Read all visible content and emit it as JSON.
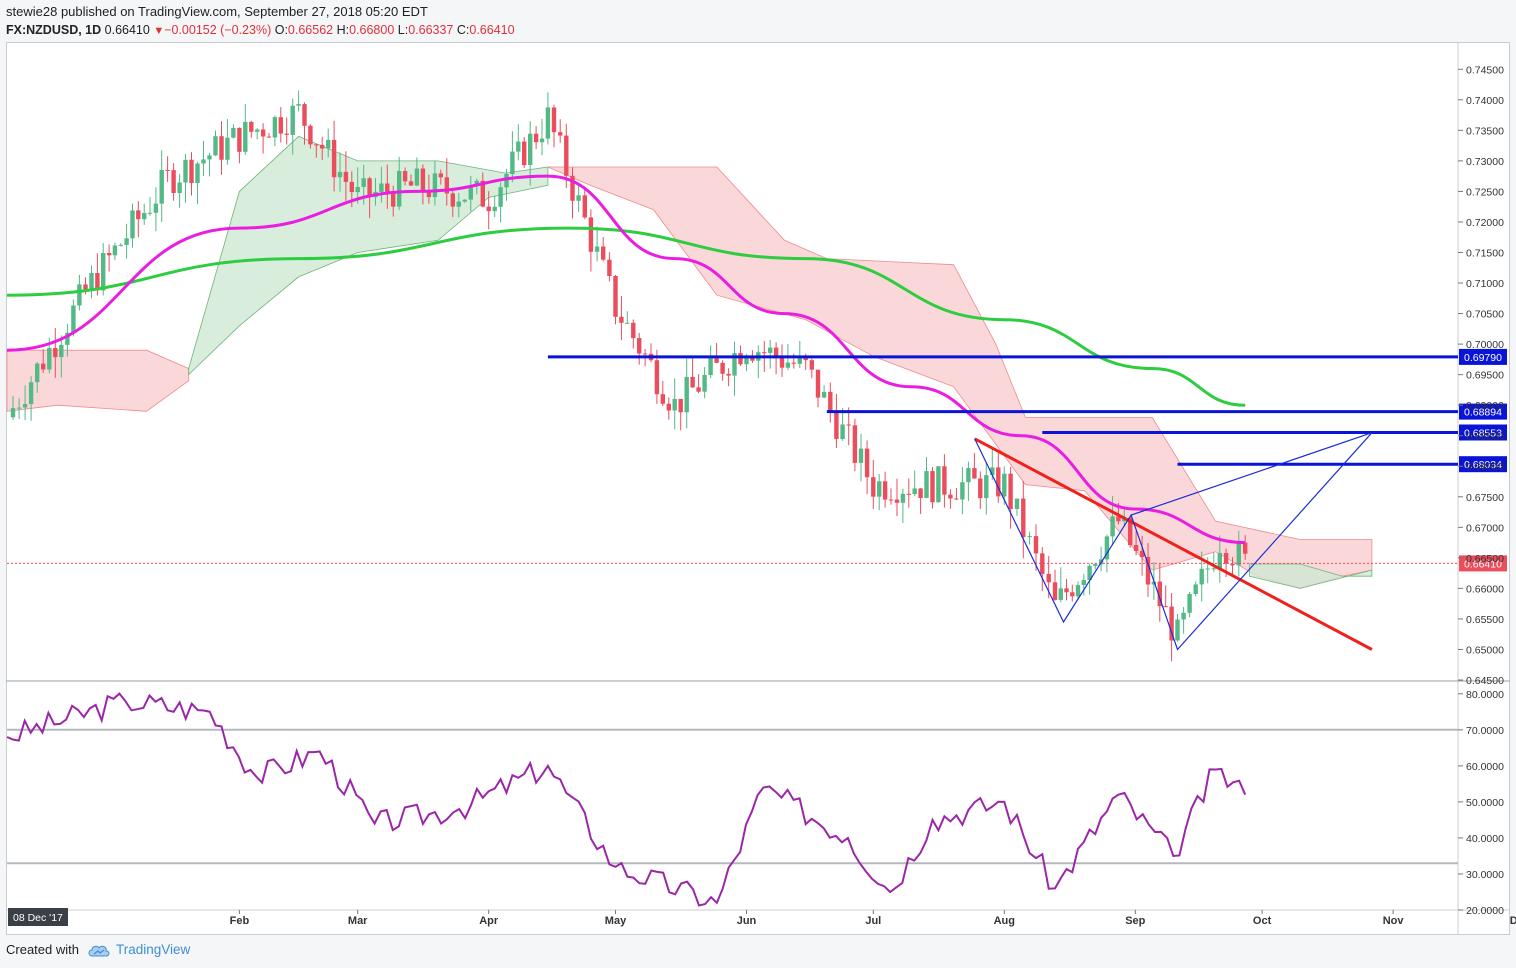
{
  "header": {
    "publisher": "stewie28",
    "published_text": "published on TradingView.com, September 27, 2018 05:20 EDT",
    "symbol": "FX:NZDUSD, 1D",
    "last": "0.66410",
    "change": "−0.00152 (−0.23%)",
    "o_label": "O:",
    "o": "0.66562",
    "h_label": "H:",
    "h": "0.66800",
    "l_label": "L:",
    "l": "0.66337",
    "c_label": "C:",
    "c": "0.66410"
  },
  "footer": {
    "created_with": "Created with",
    "brand": "TradingView"
  },
  "colors": {
    "up": "#53b987",
    "down": "#eb4d5c",
    "ema50": "#e91ee0",
    "ema200": "#2ecc40",
    "level": "#0a14d6",
    "trendline": "#f0201c",
    "pattern": "#1a2ed6",
    "rsi": "#9b27a8",
    "cloud_bull": "#cfe9d3",
    "cloud_bear": "#f8c9cc"
  },
  "chart_data": [
    {
      "type": "candlestick",
      "instrument": "FX:NZDUSD",
      "timeframe": "1D",
      "y_range": [
        0.645,
        0.7475
      ],
      "price_ticks": [
        "0.74500",
        "0.74000",
        "0.73500",
        "0.73000",
        "0.72500",
        "0.72000",
        "0.71500",
        "0.71000",
        "0.70500",
        "0.70000",
        "0.69500",
        "0.69000",
        "0.68500",
        "0.68000",
        "0.67500",
        "0.67000",
        "0.66500",
        "0.66000",
        "0.65500",
        "0.65000",
        "0.64500"
      ],
      "x_ticks": [
        "Feb",
        "Mar",
        "Apr",
        "May",
        "Jun",
        "Jul",
        "Aug",
        "Sep",
        "Oct",
        "Nov",
        "Dec"
      ],
      "x_start_label": "08 Dec '17",
      "current_price": "0.66410",
      "horizontal_levels": [
        "0.69790",
        "0.68894",
        "0.68553",
        "0.68034"
      ],
      "monthly_path": [
        {
          "date": "2017-12-08",
          "close": 0.688
        },
        {
          "date": "2017-12-28",
          "close": 0.71
        },
        {
          "date": "2018-01-15",
          "close": 0.727
        },
        {
          "date": "2018-02-01",
          "close": 0.734
        },
        {
          "date": "2018-02-15",
          "close": 0.738
        },
        {
          "date": "2018-03-01",
          "close": 0.724
        },
        {
          "date": "2018-03-15",
          "close": 0.726
        },
        {
          "date": "2018-04-01",
          "close": 0.724
        },
        {
          "date": "2018-04-15",
          "close": 0.737
        },
        {
          "date": "2018-05-01",
          "close": 0.706
        },
        {
          "date": "2018-05-15",
          "close": 0.69
        },
        {
          "date": "2018-06-01",
          "close": 0.7
        },
        {
          "date": "2018-06-15",
          "close": 0.696
        },
        {
          "date": "2018-07-01",
          "close": 0.677
        },
        {
          "date": "2018-07-15",
          "close": 0.677
        },
        {
          "date": "2018-08-01",
          "close": 0.677
        },
        {
          "date": "2018-08-13",
          "close": 0.657
        },
        {
          "date": "2018-08-28",
          "close": 0.671
        },
        {
          "date": "2018-09-11",
          "close": 0.652
        },
        {
          "date": "2018-09-21",
          "close": 0.668
        },
        {
          "date": "2018-09-27",
          "close": 0.6641
        }
      ],
      "ema_50_path": [
        {
          "date": "2017-12-08",
          "value": 0.699
        },
        {
          "date": "2018-02-01",
          "value": 0.719
        },
        {
          "date": "2018-03-15",
          "value": 0.725
        },
        {
          "date": "2018-04-15",
          "value": 0.7275
        },
        {
          "date": "2018-05-15",
          "value": 0.714
        },
        {
          "date": "2018-06-10",
          "value": 0.705
        },
        {
          "date": "2018-07-10",
          "value": 0.693
        },
        {
          "date": "2018-08-05",
          "value": 0.685
        },
        {
          "date": "2018-09-01",
          "value": 0.673
        },
        {
          "date": "2018-09-27",
          "value": 0.6675
        }
      ],
      "ema_200_path": [
        {
          "date": "2017-12-08",
          "value": 0.708
        },
        {
          "date": "2018-02-15",
          "value": 0.714
        },
        {
          "date": "2018-04-20",
          "value": 0.719
        },
        {
          "date": "2018-06-15",
          "value": 0.714
        },
        {
          "date": "2018-08-01",
          "value": 0.704
        },
        {
          "date": "2018-09-05",
          "value": 0.696
        },
        {
          "date": "2018-09-27",
          "value": 0.69
        }
      ]
    },
    {
      "type": "line",
      "name": "RSI",
      "y_range": [
        20,
        83
      ],
      "y_ticks": [
        "80.0000",
        "70.0000",
        "60.0000",
        "50.0000",
        "40.0000",
        "30.0000",
        "20.0000"
      ],
      "bands": [
        70,
        33
      ],
      "values_path": [
        {
          "date": "2017-12-08",
          "value": 68
        },
        {
          "date": "2018-01-05",
          "value": 78
        },
        {
          "date": "2018-01-25",
          "value": 75
        },
        {
          "date": "2018-02-05",
          "value": 57
        },
        {
          "date": "2018-02-20",
          "value": 64
        },
        {
          "date": "2018-03-05",
          "value": 44
        },
        {
          "date": "2018-03-25",
          "value": 48
        },
        {
          "date": "2018-04-15",
          "value": 60
        },
        {
          "date": "2018-05-01",
          "value": 32
        },
        {
          "date": "2018-05-25",
          "value": 22
        },
        {
          "date": "2018-06-05",
          "value": 54
        },
        {
          "date": "2018-06-25",
          "value": 40
        },
        {
          "date": "2018-07-05",
          "value": 25
        },
        {
          "date": "2018-07-15",
          "value": 45
        },
        {
          "date": "2018-08-01",
          "value": 50
        },
        {
          "date": "2018-08-13",
          "value": 26
        },
        {
          "date": "2018-08-28",
          "value": 52
        },
        {
          "date": "2018-09-10",
          "value": 35
        },
        {
          "date": "2018-09-20",
          "value": 59
        },
        {
          "date": "2018-09-27",
          "value": 52
        }
      ]
    }
  ]
}
